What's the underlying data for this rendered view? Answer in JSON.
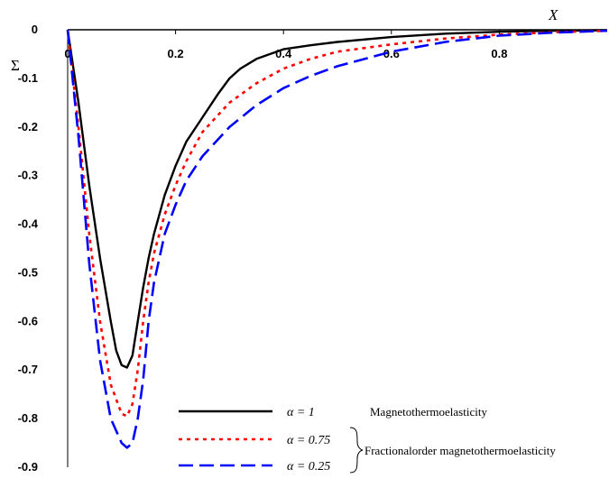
{
  "chart_data": {
    "type": "line",
    "xlabel": "X",
    "ylabel": "Σ",
    "xlim": [
      0,
      1
    ],
    "ylim": [
      -0.9,
      0
    ],
    "x_ticks": [
      "0",
      "0.2",
      "0.4",
      "0.6",
      "0.8"
    ],
    "y_ticks": [
      "0",
      "-0.1",
      "-0.2",
      "-0.3",
      "-0.4",
      "-0.5",
      "-0.6",
      "-0.7",
      "-0.8",
      "-0.9"
    ],
    "grid": false,
    "legend_position": "bottom-right",
    "series": [
      {
        "name": "α = 1",
        "color": "#000000",
        "style": "solid",
        "x": [
          0,
          0.02,
          0.04,
          0.06,
          0.08,
          0.09,
          0.1,
          0.11,
          0.12,
          0.13,
          0.14,
          0.15,
          0.16,
          0.18,
          0.2,
          0.22,
          0.25,
          0.28,
          0.3,
          0.32,
          0.35,
          0.4,
          0.45,
          0.5,
          0.6,
          0.7,
          0.8,
          0.9,
          1.0
        ],
        "y": [
          0,
          -0.15,
          -0.32,
          -0.47,
          -0.6,
          -0.66,
          -0.69,
          -0.695,
          -0.67,
          -0.6,
          -0.53,
          -0.47,
          -0.42,
          -0.34,
          -0.28,
          -0.23,
          -0.18,
          -0.13,
          -0.1,
          -0.08,
          -0.06,
          -0.04,
          -0.032,
          -0.025,
          -0.015,
          -0.008,
          -0.004,
          -0.002,
          -0.001
        ]
      },
      {
        "name": "α = 0.75",
        "color": "#ff0000",
        "style": "dotted",
        "x": [
          0,
          0.02,
          0.04,
          0.06,
          0.08,
          0.1,
          0.11,
          0.12,
          0.13,
          0.14,
          0.15,
          0.16,
          0.18,
          0.2,
          0.22,
          0.25,
          0.3,
          0.35,
          0.4,
          0.45,
          0.5,
          0.6,
          0.7,
          0.8,
          0.9,
          1.0
        ],
        "y": [
          0,
          -0.2,
          -0.42,
          -0.6,
          -0.73,
          -0.79,
          -0.795,
          -0.77,
          -0.7,
          -0.6,
          -0.52,
          -0.46,
          -0.38,
          -0.32,
          -0.27,
          -0.21,
          -0.15,
          -0.11,
          -0.08,
          -0.06,
          -0.045,
          -0.03,
          -0.018,
          -0.01,
          -0.005,
          -0.002
        ]
      },
      {
        "name": "α = 0.25",
        "color": "#0000ff",
        "style": "dashed",
        "x": [
          0,
          0.02,
          0.04,
          0.06,
          0.08,
          0.1,
          0.11,
          0.12,
          0.13,
          0.14,
          0.15,
          0.16,
          0.18,
          0.2,
          0.22,
          0.25,
          0.3,
          0.35,
          0.4,
          0.45,
          0.5,
          0.6,
          0.7,
          0.8,
          0.9,
          1.0
        ],
        "y": [
          0,
          -0.22,
          -0.48,
          -0.68,
          -0.8,
          -0.85,
          -0.86,
          -0.85,
          -0.8,
          -0.72,
          -0.6,
          -0.52,
          -0.42,
          -0.36,
          -0.31,
          -0.26,
          -0.2,
          -0.155,
          -0.12,
          -0.095,
          -0.075,
          -0.045,
          -0.025,
          -0.012,
          -0.006,
          -0.002
        ]
      }
    ],
    "legend": {
      "single_label": "Magnetothermoelasticity",
      "group_label": "Fractionalorder magnetothermoelasticity"
    }
  }
}
